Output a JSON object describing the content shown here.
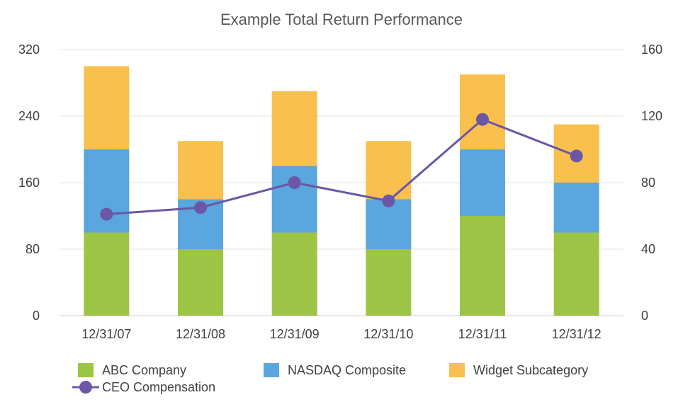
{
  "chart_data": {
    "type": "bar",
    "stacked": true,
    "title": "Example Total Return Performance",
    "categories": [
      "12/31/07",
      "12/31/08",
      "12/31/09",
      "12/31/10",
      "12/31/11",
      "12/31/12"
    ],
    "series": [
      {
        "name": "ABC Company",
        "type": "bar",
        "axis": "left",
        "color": "#9dc545",
        "values": [
          100,
          80,
          100,
          80,
          120,
          100
        ]
      },
      {
        "name": "NASDAQ Composite",
        "type": "bar",
        "axis": "left",
        "color": "#5aa6de",
        "values": [
          100,
          60,
          80,
          60,
          80,
          60
        ]
      },
      {
        "name": "Widget Subcategory",
        "type": "bar",
        "axis": "left",
        "color": "#f9c04e",
        "values": [
          100,
          70,
          90,
          70,
          90,
          70
        ]
      },
      {
        "name": "CEO Compensation",
        "type": "line",
        "axis": "right",
        "color": "#6b57a5",
        "values": [
          61,
          65,
          80,
          69,
          118,
          96
        ]
      }
    ],
    "ylim_left": [
      0,
      320
    ],
    "yticks_left": [
      0,
      80,
      160,
      240,
      320
    ],
    "ylim_right": [
      0,
      160
    ],
    "yticks_right": [
      0,
      40,
      80,
      120,
      160
    ],
    "grid": true,
    "legend_position": "bottom"
  }
}
